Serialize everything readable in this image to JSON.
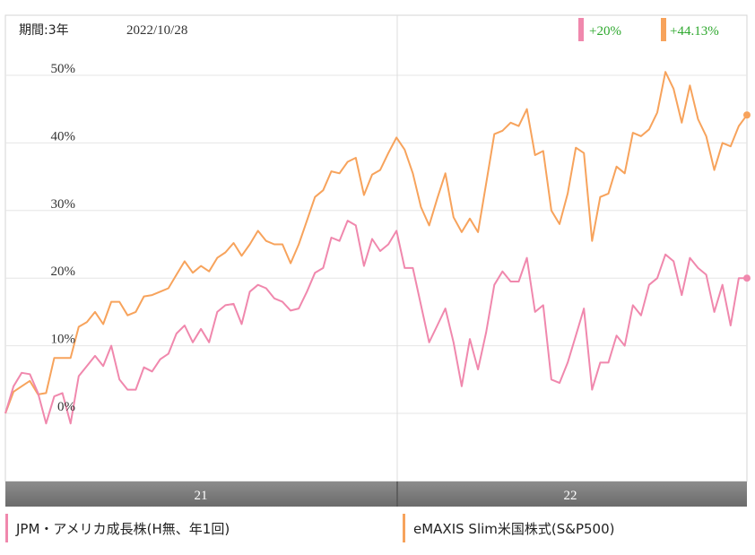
{
  "header": {
    "period_label": "期間:3年",
    "date_label": "2022/10/28"
  },
  "badges": [
    {
      "text": "+20%",
      "color": "#f088ad"
    },
    {
      "text": "+44.13%",
      "color": "#f7a35c"
    }
  ],
  "colors": {
    "series_pink": "#f088ad",
    "series_orange": "#f7a35c",
    "badge_text": "#2ea82e",
    "axis_bar": "#7d7d7d",
    "grid": "#e6e6e6"
  },
  "legend": [
    {
      "label": "JPM・アメリカ成長株(H無、年1回)",
      "color": "#f088ad"
    },
    {
      "label": "eMAXIS Slim米国株式(S&P500)",
      "color": "#f7a35c"
    }
  ],
  "chart_data": {
    "type": "line",
    "x_tick_labels": [
      "21",
      "22"
    ],
    "y_tick_labels": [
      "0%",
      "10%",
      "20%",
      "30%",
      "40%",
      "50%"
    ],
    "y_ticks": [
      0,
      10,
      20,
      30,
      40,
      50
    ],
    "ylim": [
      -10,
      57
    ],
    "grid": true,
    "legend_position": "bottom",
    "series": [
      {
        "name": "JPM・アメリカ成長株(H無、年1回)",
        "color": "#f088ad",
        "values": [
          0.0,
          4.0,
          6.0,
          5.8,
          3.0,
          -1.5,
          2.5,
          3.0,
          -1.5,
          5.5,
          7.0,
          8.5,
          7.0,
          10.0,
          5.0,
          3.5,
          3.5,
          6.8,
          6.2,
          8.0,
          8.8,
          11.8,
          13.0,
          10.5,
          12.5,
          10.5,
          15.0,
          16.0,
          16.2,
          13.2,
          18.0,
          19.0,
          18.5,
          17.0,
          16.5,
          15.2,
          15.5,
          18.0,
          20.8,
          21.5,
          26.0,
          25.5,
          28.5,
          27.8,
          21.8,
          25.8,
          24.0,
          25.0,
          27.0,
          21.5,
          21.5,
          16.0,
          10.5,
          13.0,
          15.5,
          10.5,
          4.0,
          11.0,
          6.5,
          12.0,
          19.0,
          21.0,
          19.5,
          19.5,
          23.0,
          15.0,
          16.0,
          5.0,
          4.5,
          7.5,
          11.5,
          15.5,
          3.5,
          7.5,
          7.5,
          11.5,
          10.0,
          16.0,
          14.5,
          19.0,
          20.0,
          23.5,
          22.5,
          17.5,
          23.0,
          21.5,
          20.5,
          15.0,
          19.0,
          13.0,
          20.0,
          20.0
        ]
      },
      {
        "name": "eMAXIS Slim米国株式(S&P500)",
        "color": "#f7a35c",
        "values": [
          0.0,
          3.2,
          4.0,
          4.8,
          2.8,
          3.0,
          8.2,
          8.2,
          8.2,
          12.8,
          13.5,
          15.0,
          13.2,
          16.5,
          16.5,
          14.5,
          15.0,
          17.3,
          17.5,
          18.0,
          18.5,
          20.5,
          22.5,
          20.8,
          21.8,
          21.0,
          23.0,
          23.8,
          25.2,
          23.3,
          25.0,
          27.0,
          25.5,
          25.0,
          25.0,
          22.2,
          25.0,
          28.5,
          32.0,
          33.0,
          35.8,
          35.5,
          37.2,
          37.8,
          32.3,
          35.3,
          36.0,
          38.5,
          40.8,
          39.0,
          35.5,
          30.5,
          27.8,
          31.8,
          35.5,
          29.0,
          26.8,
          28.8,
          26.8,
          34.0,
          41.3,
          41.8,
          43.0,
          42.5,
          45.0,
          38.2,
          38.8,
          30.0,
          28.0,
          32.5,
          39.3,
          38.5,
          25.5,
          32.0,
          32.5,
          36.5,
          35.5,
          41.5,
          41.0,
          42.0,
          44.5,
          50.5,
          48.0,
          43.0,
          48.5,
          43.5,
          41.0,
          36.0,
          40.0,
          39.5,
          42.5,
          44.13
        ]
      }
    ]
  }
}
